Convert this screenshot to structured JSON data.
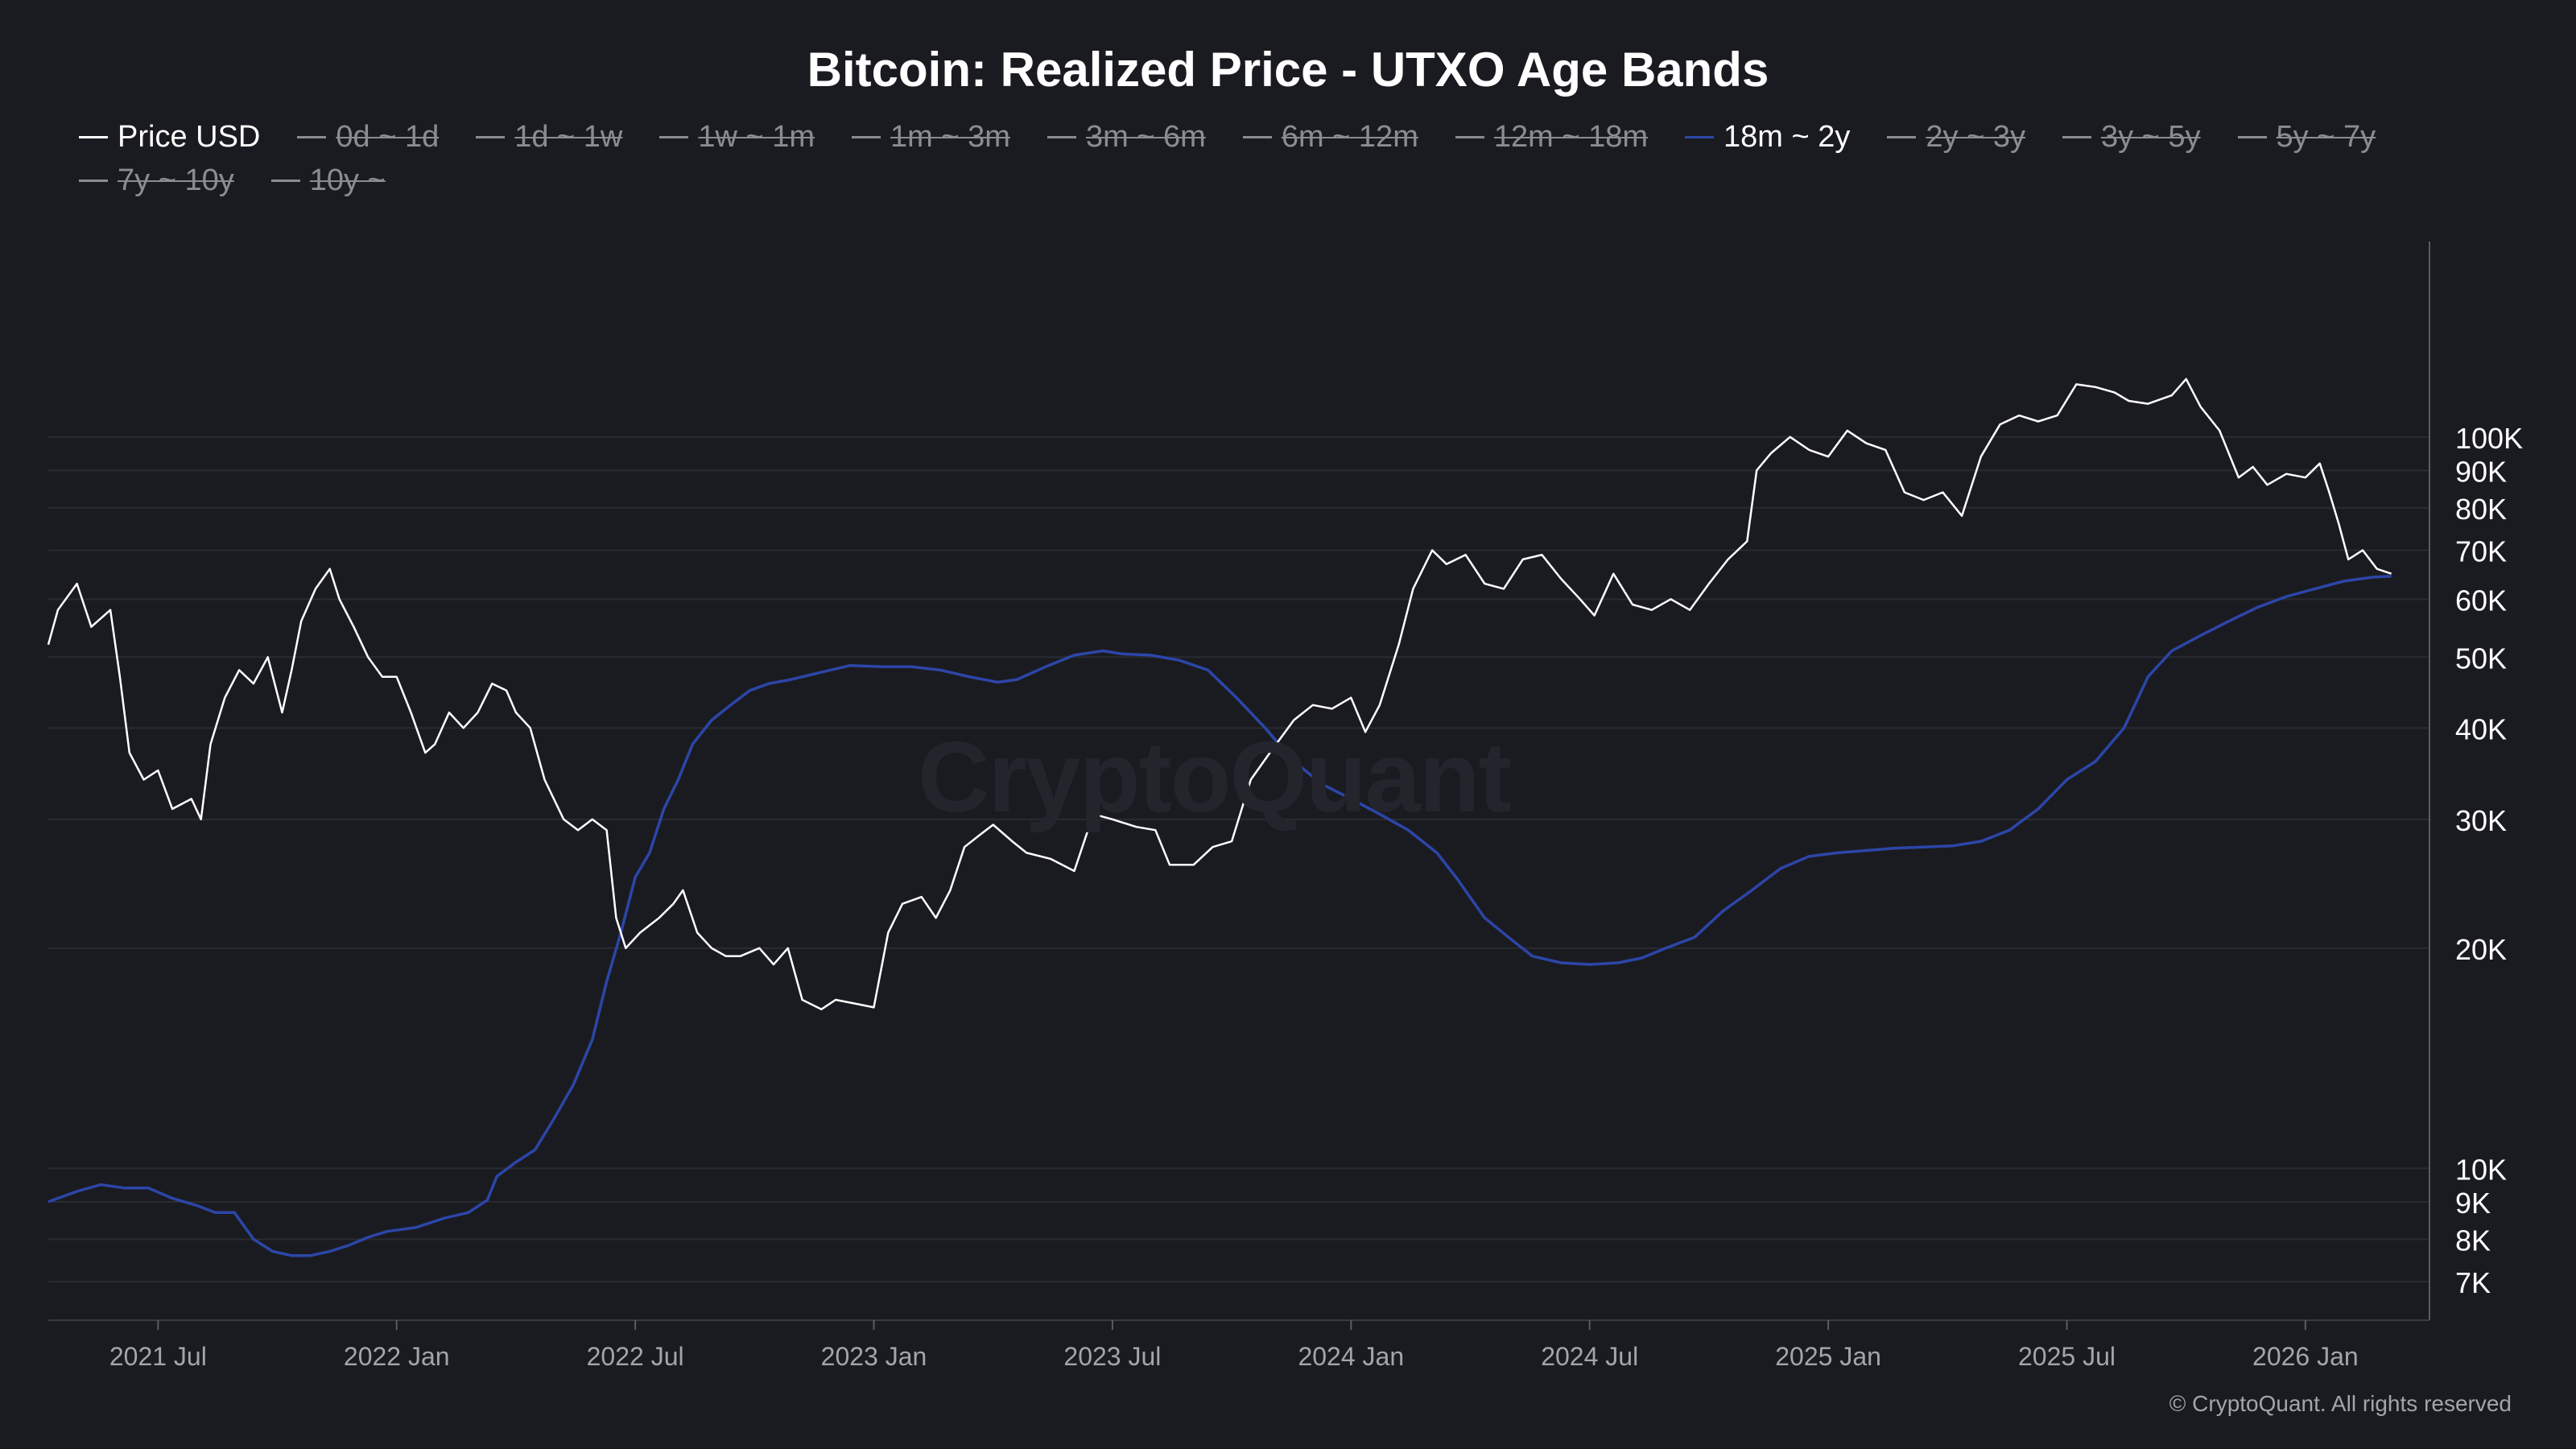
{
  "title": "Bitcoin: Realized Price - UTXO Age Bands",
  "legend": [
    {
      "label": "Price USD",
      "active": true,
      "color": "#ffffff"
    },
    {
      "label": "0d ~ 1d",
      "active": false,
      "color": "#8a8c93"
    },
    {
      "label": "1d ~ 1w",
      "active": false,
      "color": "#8a8c93"
    },
    {
      "label": "1w ~ 1m",
      "active": false,
      "color": "#8a8c93"
    },
    {
      "label": "1m ~ 3m",
      "active": false,
      "color": "#8a8c93"
    },
    {
      "label": "3m ~ 6m",
      "active": false,
      "color": "#8a8c93"
    },
    {
      "label": "6m ~ 12m",
      "active": false,
      "color": "#8a8c93"
    },
    {
      "label": "12m ~ 18m",
      "active": false,
      "color": "#8a8c93"
    },
    {
      "label": "18m ~ 2y",
      "active": true,
      "color": "#2c46a8"
    },
    {
      "label": "2y ~ 3y",
      "active": false,
      "color": "#8a8c93"
    },
    {
      "label": "3y ~ 5y",
      "active": false,
      "color": "#8a8c93"
    },
    {
      "label": "5y ~ 7y",
      "active": false,
      "color": "#8a8c93"
    },
    {
      "label": "7y ~ 10y",
      "active": false,
      "color": "#8a8c93"
    },
    {
      "label": "10y ~",
      "active": false,
      "color": "#8a8c93"
    }
  ],
  "watermark": "CryptoQuant",
  "copyright": "© CryptoQuant. All rights reserved",
  "colors": {
    "background": "#1a1b21",
    "grid": "#2a2b32",
    "price": "#ffffff",
    "band": "#2c46a8",
    "axis_text": "#ffffff",
    "xaxis_text": "#a3a5ab"
  },
  "chart_data": {
    "type": "line",
    "title": "Bitcoin: Realized Price - UTXO Age Bands",
    "y_scale": "log",
    "ylim": [
      6200,
      185000
    ],
    "xlim": [
      2021.27,
      2026.26
    ],
    "y_ticks": [
      {
        "value": 7000,
        "label": "7K"
      },
      {
        "value": 8000,
        "label": "8K"
      },
      {
        "value": 9000,
        "label": "9K"
      },
      {
        "value": 10000,
        "label": "10K"
      },
      {
        "value": 20000,
        "label": "20K"
      },
      {
        "value": 30000,
        "label": "30K"
      },
      {
        "value": 40000,
        "label": "40K"
      },
      {
        "value": 50000,
        "label": "50K"
      },
      {
        "value": 60000,
        "label": "60K"
      },
      {
        "value": 70000,
        "label": "70K"
      },
      {
        "value": 80000,
        "label": "80K"
      },
      {
        "value": 90000,
        "label": "90K"
      },
      {
        "value": 100000,
        "label": "100K"
      }
    ],
    "x_ticks": [
      {
        "value": 2021.5,
        "label": "2021 Jul"
      },
      {
        "value": 2022.0,
        "label": "2022 Jan"
      },
      {
        "value": 2022.5,
        "label": "2022 Jul"
      },
      {
        "value": 2023.0,
        "label": "2023 Jan"
      },
      {
        "value": 2023.5,
        "label": "2023 Jul"
      },
      {
        "value": 2024.0,
        "label": "2024 Jan"
      },
      {
        "value": 2024.5,
        "label": "2024 Jul"
      },
      {
        "value": 2025.0,
        "label": "2025 Jan"
      },
      {
        "value": 2025.5,
        "label": "2025 Jul"
      },
      {
        "value": 2026.0,
        "label": "2026 Jan"
      }
    ],
    "grid": true,
    "series": [
      {
        "name": "Price USD",
        "color": "#ffffff",
        "points": [
          [
            2021.27,
            52000
          ],
          [
            2021.29,
            58000
          ],
          [
            2021.33,
            63000
          ],
          [
            2021.36,
            55000
          ],
          [
            2021.4,
            58000
          ],
          [
            2021.42,
            47000
          ],
          [
            2021.44,
            37000
          ],
          [
            2021.47,
            34000
          ],
          [
            2021.5,
            35000
          ],
          [
            2021.53,
            31000
          ],
          [
            2021.57,
            32000
          ],
          [
            2021.59,
            30000
          ],
          [
            2021.61,
            38000
          ],
          [
            2021.64,
            44000
          ],
          [
            2021.67,
            48000
          ],
          [
            2021.7,
            46000
          ],
          [
            2021.73,
            50000
          ],
          [
            2021.76,
            42000
          ],
          [
            2021.78,
            48000
          ],
          [
            2021.8,
            56000
          ],
          [
            2021.83,
            62000
          ],
          [
            2021.86,
            66000
          ],
          [
            2021.88,
            60000
          ],
          [
            2021.91,
            55000
          ],
          [
            2021.94,
            50000
          ],
          [
            2021.97,
            47000
          ],
          [
            2022.0,
            47000
          ],
          [
            2022.03,
            42000
          ],
          [
            2022.06,
            37000
          ],
          [
            2022.08,
            38000
          ],
          [
            2022.11,
            42000
          ],
          [
            2022.14,
            40000
          ],
          [
            2022.17,
            42000
          ],
          [
            2022.2,
            46000
          ],
          [
            2022.23,
            45000
          ],
          [
            2022.25,
            42000
          ],
          [
            2022.28,
            40000
          ],
          [
            2022.31,
            34000
          ],
          [
            2022.35,
            30000
          ],
          [
            2022.38,
            29000
          ],
          [
            2022.41,
            30000
          ],
          [
            2022.44,
            29000
          ],
          [
            2022.46,
            22000
          ],
          [
            2022.48,
            20000
          ],
          [
            2022.51,
            21000
          ],
          [
            2022.55,
            22000
          ],
          [
            2022.58,
            23000
          ],
          [
            2022.6,
            24000
          ],
          [
            2022.63,
            21000
          ],
          [
            2022.66,
            20000
          ],
          [
            2022.69,
            19500
          ],
          [
            2022.72,
            19500
          ],
          [
            2022.76,
            20000
          ],
          [
            2022.79,
            19000
          ],
          [
            2022.82,
            20000
          ],
          [
            2022.85,
            17000
          ],
          [
            2022.89,
            16500
          ],
          [
            2022.92,
            17000
          ],
          [
            2022.96,
            16800
          ],
          [
            2023.0,
            16600
          ],
          [
            2023.03,
            21000
          ],
          [
            2023.06,
            23000
          ],
          [
            2023.1,
            23500
          ],
          [
            2023.13,
            22000
          ],
          [
            2023.16,
            24000
          ],
          [
            2023.19,
            27500
          ],
          [
            2023.22,
            28500
          ],
          [
            2023.25,
            29500
          ],
          [
            2023.29,
            28000
          ],
          [
            2023.32,
            27000
          ],
          [
            2023.37,
            26500
          ],
          [
            2023.42,
            25500
          ],
          [
            2023.46,
            30500
          ],
          [
            2023.5,
            30000
          ],
          [
            2023.55,
            29300
          ],
          [
            2023.59,
            29000
          ],
          [
            2023.62,
            26000
          ],
          [
            2023.67,
            26000
          ],
          [
            2023.71,
            27500
          ],
          [
            2023.75,
            28000
          ],
          [
            2023.79,
            34000
          ],
          [
            2023.83,
            37000
          ],
          [
            2023.88,
            41000
          ],
          [
            2023.92,
            43000
          ],
          [
            2023.96,
            42500
          ],
          [
            2024.0,
            44000
          ],
          [
            2024.03,
            39500
          ],
          [
            2024.06,
            43000
          ],
          [
            2024.1,
            52000
          ],
          [
            2024.13,
            62000
          ],
          [
            2024.17,
            70000
          ],
          [
            2024.2,
            67000
          ],
          [
            2024.24,
            69000
          ],
          [
            2024.28,
            63000
          ],
          [
            2024.32,
            62000
          ],
          [
            2024.36,
            68000
          ],
          [
            2024.4,
            69000
          ],
          [
            2024.44,
            64000
          ],
          [
            2024.48,
            60000
          ],
          [
            2024.51,
            57000
          ],
          [
            2024.55,
            65000
          ],
          [
            2024.59,
            59000
          ],
          [
            2024.63,
            58000
          ],
          [
            2024.67,
            60000
          ],
          [
            2024.71,
            58000
          ],
          [
            2024.75,
            63000
          ],
          [
            2024.79,
            68000
          ],
          [
            2024.83,
            72000
          ],
          [
            2024.85,
            90000
          ],
          [
            2024.88,
            95000
          ],
          [
            2024.92,
            100000
          ],
          [
            2024.96,
            96000
          ],
          [
            2025.0,
            94000
          ],
          [
            2025.04,
            102000
          ],
          [
            2025.08,
            98000
          ],
          [
            2025.12,
            96000
          ],
          [
            2025.16,
            84000
          ],
          [
            2025.2,
            82000
          ],
          [
            2025.24,
            84000
          ],
          [
            2025.28,
            78000
          ],
          [
            2025.32,
            94000
          ],
          [
            2025.36,
            104000
          ],
          [
            2025.4,
            107000
          ],
          [
            2025.44,
            105000
          ],
          [
            2025.48,
            107000
          ],
          [
            2025.52,
            118000
          ],
          [
            2025.56,
            117000
          ],
          [
            2025.6,
            115000
          ],
          [
            2025.63,
            112000
          ],
          [
            2025.67,
            111000
          ],
          [
            2025.72,
            114000
          ],
          [
            2025.75,
            120000
          ],
          [
            2025.78,
            110000
          ],
          [
            2025.82,
            102000
          ],
          [
            2025.86,
            88000
          ],
          [
            2025.89,
            91000
          ],
          [
            2025.92,
            86000
          ],
          [
            2025.96,
            89000
          ],
          [
            2026.0,
            88000
          ],
          [
            2026.03,
            92000
          ],
          [
            2026.05,
            84000
          ],
          [
            2026.07,
            76000
          ],
          [
            2026.09,
            68000
          ],
          [
            2026.12,
            70000
          ],
          [
            2026.15,
            66000
          ],
          [
            2026.18,
            65000
          ]
        ]
      },
      {
        "name": "18m ~ 2y",
        "color": "#2c46a8",
        "points": [
          [
            2021.27,
            9000
          ],
          [
            2021.33,
            9300
          ],
          [
            2021.38,
            9500
          ],
          [
            2021.43,
            9400
          ],
          [
            2021.48,
            9400
          ],
          [
            2021.53,
            9100
          ],
          [
            2021.58,
            8900
          ],
          [
            2021.62,
            8700
          ],
          [
            2021.66,
            8700
          ],
          [
            2021.7,
            8000
          ],
          [
            2021.74,
            7700
          ],
          [
            2021.78,
            7600
          ],
          [
            2021.82,
            7600
          ],
          [
            2021.86,
            7700
          ],
          [
            2021.9,
            7850
          ],
          [
            2021.94,
            8050
          ],
          [
            2021.98,
            8200
          ],
          [
            2022.04,
            8300
          ],
          [
            2022.1,
            8550
          ],
          [
            2022.15,
            8700
          ],
          [
            2022.19,
            9050
          ],
          [
            2022.21,
            9750
          ],
          [
            2022.25,
            10200
          ],
          [
            2022.29,
            10600
          ],
          [
            2022.33,
            11700
          ],
          [
            2022.37,
            13000
          ],
          [
            2022.41,
            15000
          ],
          [
            2022.44,
            18000
          ],
          [
            2022.47,
            21000
          ],
          [
            2022.5,
            25000
          ],
          [
            2022.53,
            27000
          ],
          [
            2022.56,
            31000
          ],
          [
            2022.59,
            34000
          ],
          [
            2022.62,
            38000
          ],
          [
            2022.66,
            41000
          ],
          [
            2022.7,
            43000
          ],
          [
            2022.74,
            45000
          ],
          [
            2022.78,
            46000
          ],
          [
            2022.82,
            46500
          ],
          [
            2022.88,
            47500
          ],
          [
            2022.95,
            48700
          ],
          [
            2023.02,
            48500
          ],
          [
            2023.08,
            48500
          ],
          [
            2023.14,
            48000
          ],
          [
            2023.2,
            47000
          ],
          [
            2023.26,
            46200
          ],
          [
            2023.3,
            46600
          ],
          [
            2023.36,
            48500
          ],
          [
            2023.42,
            50300
          ],
          [
            2023.48,
            51000
          ],
          [
            2023.52,
            50500
          ],
          [
            2023.58,
            50300
          ],
          [
            2023.64,
            49500
          ],
          [
            2023.7,
            48000
          ],
          [
            2023.76,
            44000
          ],
          [
            2023.82,
            40000
          ],
          [
            2023.88,
            36000
          ],
          [
            2023.94,
            33500
          ],
          [
            2024.0,
            32000
          ],
          [
            2024.06,
            30500
          ],
          [
            2024.12,
            29000
          ],
          [
            2024.18,
            27000
          ],
          [
            2024.22,
            25000
          ],
          [
            2024.28,
            22000
          ],
          [
            2024.33,
            20700
          ],
          [
            2024.38,
            19500
          ],
          [
            2024.44,
            19100
          ],
          [
            2024.5,
            19000
          ],
          [
            2024.56,
            19100
          ],
          [
            2024.61,
            19400
          ],
          [
            2024.66,
            20000
          ],
          [
            2024.72,
            20700
          ],
          [
            2024.78,
            22500
          ],
          [
            2024.84,
            24000
          ],
          [
            2024.9,
            25700
          ],
          [
            2024.96,
            26700
          ],
          [
            2025.02,
            27000
          ],
          [
            2025.08,
            27200
          ],
          [
            2025.14,
            27400
          ],
          [
            2025.2,
            27500
          ],
          [
            2025.26,
            27600
          ],
          [
            2025.32,
            28000
          ],
          [
            2025.38,
            29000
          ],
          [
            2025.44,
            31000
          ],
          [
            2025.5,
            34000
          ],
          [
            2025.56,
            36000
          ],
          [
            2025.62,
            40000
          ],
          [
            2025.67,
            47000
          ],
          [
            2025.72,
            51000
          ],
          [
            2025.78,
            53500
          ],
          [
            2025.84,
            56000
          ],
          [
            2025.9,
            58500
          ],
          [
            2025.96,
            60500
          ],
          [
            2026.02,
            62000
          ],
          [
            2026.08,
            63500
          ],
          [
            2026.14,
            64300
          ],
          [
            2026.18,
            64500
          ]
        ]
      }
    ]
  }
}
